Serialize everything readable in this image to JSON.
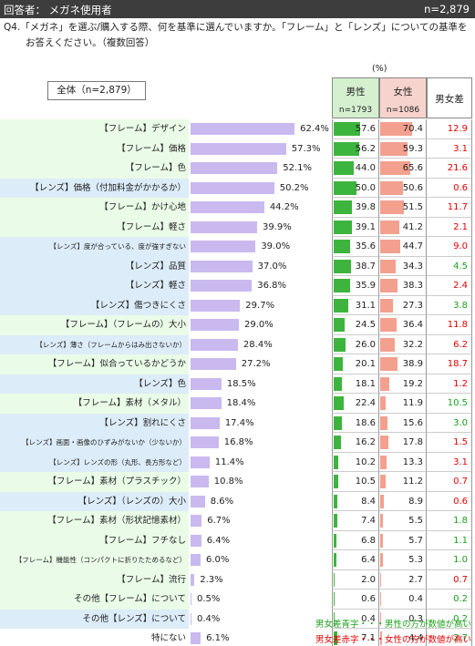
{
  "header": {
    "respondent": "回答者： メガネ使用者",
    "n": "n=2,879"
  },
  "question": {
    "line1": "Q4.「メガネ」を選ぶ/購入する際、何を基準に選んでいますか。「フレーム」と「レンズ」についての基準を",
    "line2": "お答えください。（複数回答）"
  },
  "unit": "(%)",
  "total_label": "全体（n=2,879）",
  "columns": {
    "male": {
      "name": "男性",
      "n": "n=1793",
      "color": "#3db43d"
    },
    "female": {
      "name": "女性",
      "n": "n=1086",
      "color": "#f3a08f"
    },
    "diff": {
      "name": "男女差"
    }
  },
  "legend": {
    "male_note": "男女差青字・・・男性の方が数値が高い",
    "female_note": "男女差赤字・・・女性の方が数値が高い"
  },
  "chart_data": {
    "type": "bar",
    "xlim": [
      0,
      70
    ],
    "bar_color": "#c9b9ef",
    "categories": [
      "【フレーム】デザイン",
      "【フレーム】価格",
      "【フレーム】色",
      "【レンズ】価格（付加料金がかかるか）",
      "【フレーム】かけ心地",
      "【フレーム】軽さ",
      "【レンズ】度が合っている、度が強すぎない",
      "【レンズ】品質",
      "【レンズ】軽さ",
      "【レンズ】傷つきにくさ",
      "【フレーム】（フレームの）大小",
      "【レンズ】薄さ（フレームからはみ出さないか）",
      "【フレーム】似合っているかどうか",
      "【レンズ】色",
      "【フレーム】素材（メタル）",
      "【レンズ】割れにくさ",
      "【レンズ】画面・画像のひずみがないか（少ないか）",
      "【レンズ】レンズの形（丸形、長方形など）",
      "【フレーム】素材（プラスチック）",
      "【レンズ】（レンズの）大小",
      "【フレーム】素材（形状記憶素材）",
      "【フレーム】フチなし",
      "【フレーム】機能性（コンパクトに折りたためるなど）",
      "【フレーム】流行",
      "その他【フレーム】について",
      "その他【レンズ】について",
      "特にない"
    ],
    "category_group": [
      "frame",
      "frame",
      "frame",
      "lens",
      "frame",
      "frame",
      "lens",
      "lens",
      "lens",
      "lens",
      "frame",
      "lens",
      "frame",
      "lens",
      "frame",
      "lens",
      "lens",
      "lens",
      "frame",
      "lens",
      "frame",
      "frame",
      "frame",
      "frame",
      "frame",
      "lens",
      "none"
    ],
    "series": [
      {
        "name": "全体（n=2,879）",
        "values": [
          62.4,
          57.3,
          52.1,
          50.2,
          44.2,
          39.9,
          39.0,
          37.0,
          36.8,
          29.7,
          29.0,
          28.4,
          27.2,
          18.5,
          18.4,
          17.4,
          16.8,
          11.4,
          10.8,
          8.6,
          6.7,
          6.4,
          6.0,
          2.3,
          0.5,
          0.4,
          6.1
        ]
      },
      {
        "name": "男性",
        "values": [
          57.6,
          56.2,
          44.0,
          50.0,
          39.8,
          39.1,
          35.6,
          38.7,
          35.9,
          31.1,
          24.5,
          26.0,
          20.1,
          18.1,
          22.4,
          18.6,
          16.2,
          10.2,
          10.5,
          8.4,
          7.4,
          6.8,
          6.4,
          2.0,
          0.6,
          0.4,
          7.1
        ]
      },
      {
        "name": "女性",
        "values": [
          70.4,
          59.3,
          65.6,
          50.6,
          51.5,
          41.2,
          44.7,
          34.3,
          38.3,
          27.3,
          36.4,
          32.2,
          38.9,
          19.2,
          11.9,
          15.6,
          17.8,
          13.3,
          11.2,
          8.9,
          5.5,
          5.7,
          5.3,
          2.7,
          0.4,
          0.3,
          4.4
        ]
      },
      {
        "name": "男女差",
        "values": [
          12.9,
          3.1,
          21.6,
          0.6,
          11.7,
          2.1,
          9.0,
          4.5,
          2.4,
          3.8,
          11.8,
          6.2,
          18.7,
          1.2,
          10.5,
          3.0,
          1.5,
          3.1,
          0.7,
          0.6,
          1.8,
          1.1,
          1.0,
          0.7,
          0.2,
          0.2,
          2.7
        ]
      }
    ],
    "diff_higher": [
      "female",
      "female",
      "female",
      "female",
      "female",
      "female",
      "female",
      "male",
      "female",
      "male",
      "female",
      "female",
      "female",
      "female",
      "male",
      "male",
      "female",
      "female",
      "female",
      "female",
      "male",
      "male",
      "male",
      "female",
      "male",
      "male",
      "male"
    ]
  }
}
